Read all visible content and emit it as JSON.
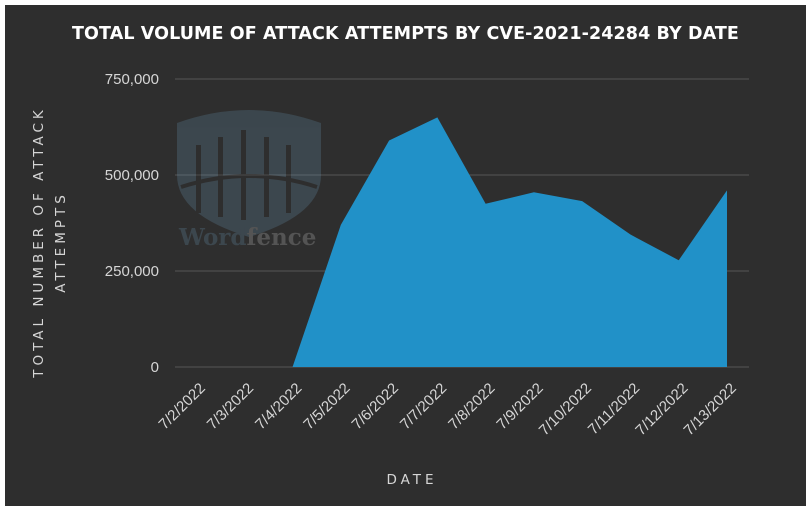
{
  "chart_data": {
    "type": "area",
    "title": "TOTAL VOLUME OF ATTACK ATTEMPTS BY CVE-2021-24284 BY DATE",
    "xlabel": "DATE",
    "ylabel_lines": [
      "TOTAL NUMBER OF ATTACK",
      "ATTEMPTS"
    ],
    "categories": [
      "7/2/2022",
      "7/3/2022",
      "7/4/2022",
      "7/5/2022",
      "7/6/2022",
      "7/7/2022",
      "7/8/2022",
      "7/9/2022",
      "7/10/2022",
      "7/11/2022",
      "7/12/2022",
      "7/13/2022"
    ],
    "values": [
      0,
      0,
      0,
      370000,
      590000,
      650000,
      425000,
      455000,
      432000,
      345000,
      278000,
      460000
    ],
    "ylim": [
      0,
      750000
    ],
    "yticks": [
      {
        "value": 0,
        "label": "0"
      },
      {
        "value": 250000,
        "label": "250,000"
      },
      {
        "value": 500000,
        "label": "500,000"
      },
      {
        "value": 750000,
        "label": "750,000"
      }
    ],
    "grid": true,
    "legend": "none",
    "colors": {
      "area": "#2191c8",
      "background": "#2e2e2e",
      "grid": "#555555",
      "text": "#d6d6d6"
    }
  },
  "watermark": {
    "word_part1": "Word",
    "word_part2": "fence"
  }
}
